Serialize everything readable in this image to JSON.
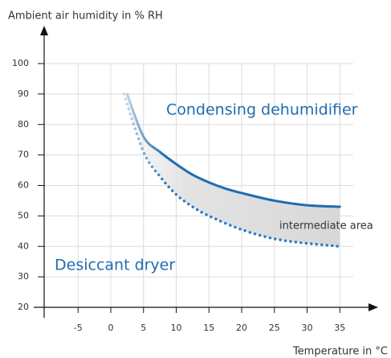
{
  "chart_data": {
    "type": "line",
    "y_label": "Ambient air humidity in % RH",
    "x_label": "Temperature in °C",
    "annotations": [
      "intermediate area"
    ],
    "series": [
      {
        "name": "Condensing dehumidifier",
        "color": "#1f6db0",
        "style": "solid",
        "x": [
          2.5,
          5,
          7.5,
          10,
          12.5,
          15,
          17.5,
          20,
          25,
          30,
          35
        ],
        "values": [
          90,
          76,
          71,
          67,
          63.5,
          61,
          59,
          57.5,
          55,
          53.5,
          53
        ]
      },
      {
        "name": "Desiccant dryer",
        "color": "#2a7bc4",
        "style": "dotted",
        "x": [
          2,
          5,
          7.5,
          10,
          12.5,
          15,
          20,
          25,
          30,
          35
        ],
        "values": [
          90,
          71,
          63,
          57,
          53,
          50,
          45.5,
          42.5,
          41,
          40
        ]
      }
    ],
    "xlim": [
      -10,
      40
    ],
    "xticks": [
      -5,
      0,
      5,
      10,
      15,
      20,
      25,
      30,
      35
    ],
    "ylim": [
      20,
      100
    ],
    "yticks": [
      20,
      30,
      40,
      50,
      60,
      70,
      80,
      90,
      100
    ],
    "grid": true
  }
}
